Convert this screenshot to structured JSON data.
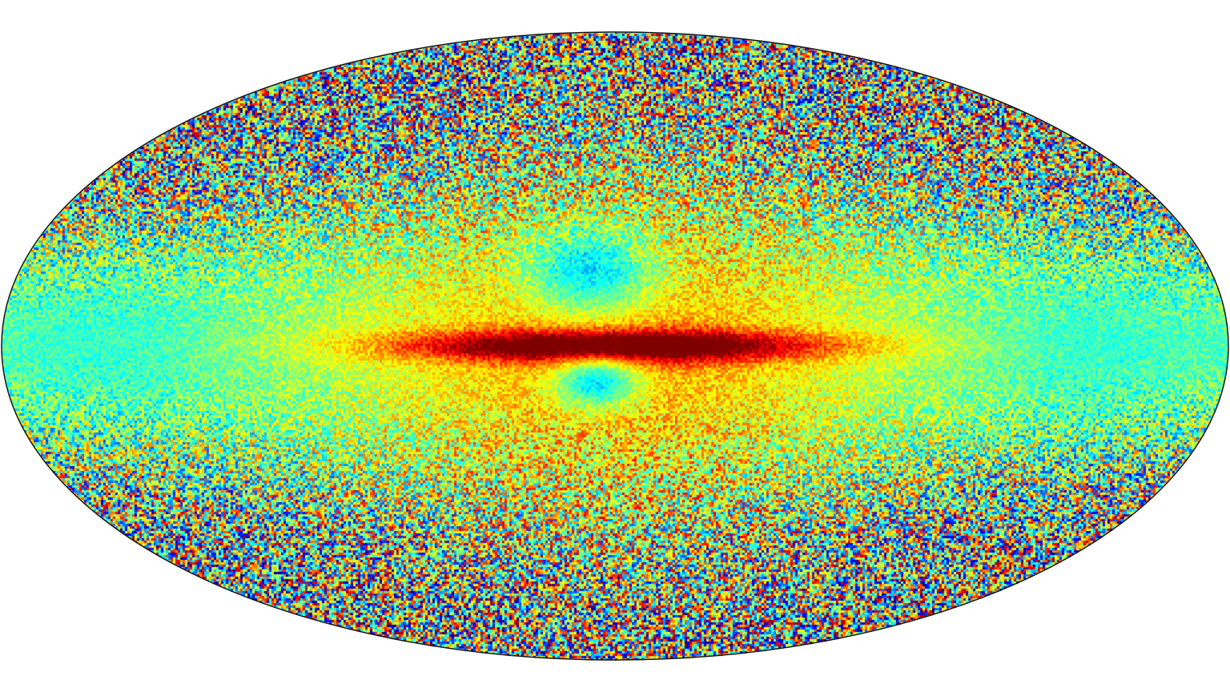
{
  "map": {
    "projection": "mollweide",
    "background_color": "#ffffff",
    "outline_color": "#111111",
    "colormap": [
      "#00007f",
      "#0000ff",
      "#0080ff",
      "#00ffff",
      "#80ff80",
      "#ffff00",
      "#ff8000",
      "#ff0000",
      "#800000"
    ],
    "features": [
      {
        "type": "band",
        "feature": "galactic-plane",
        "dominant_color": "#ff0000"
      },
      {
        "type": "lobe",
        "feature": "bulge-north",
        "dominant_color": "#0000ff"
      },
      {
        "type": "lobe",
        "feature": "bulge-south",
        "dominant_color": "#0000ff"
      }
    ]
  }
}
